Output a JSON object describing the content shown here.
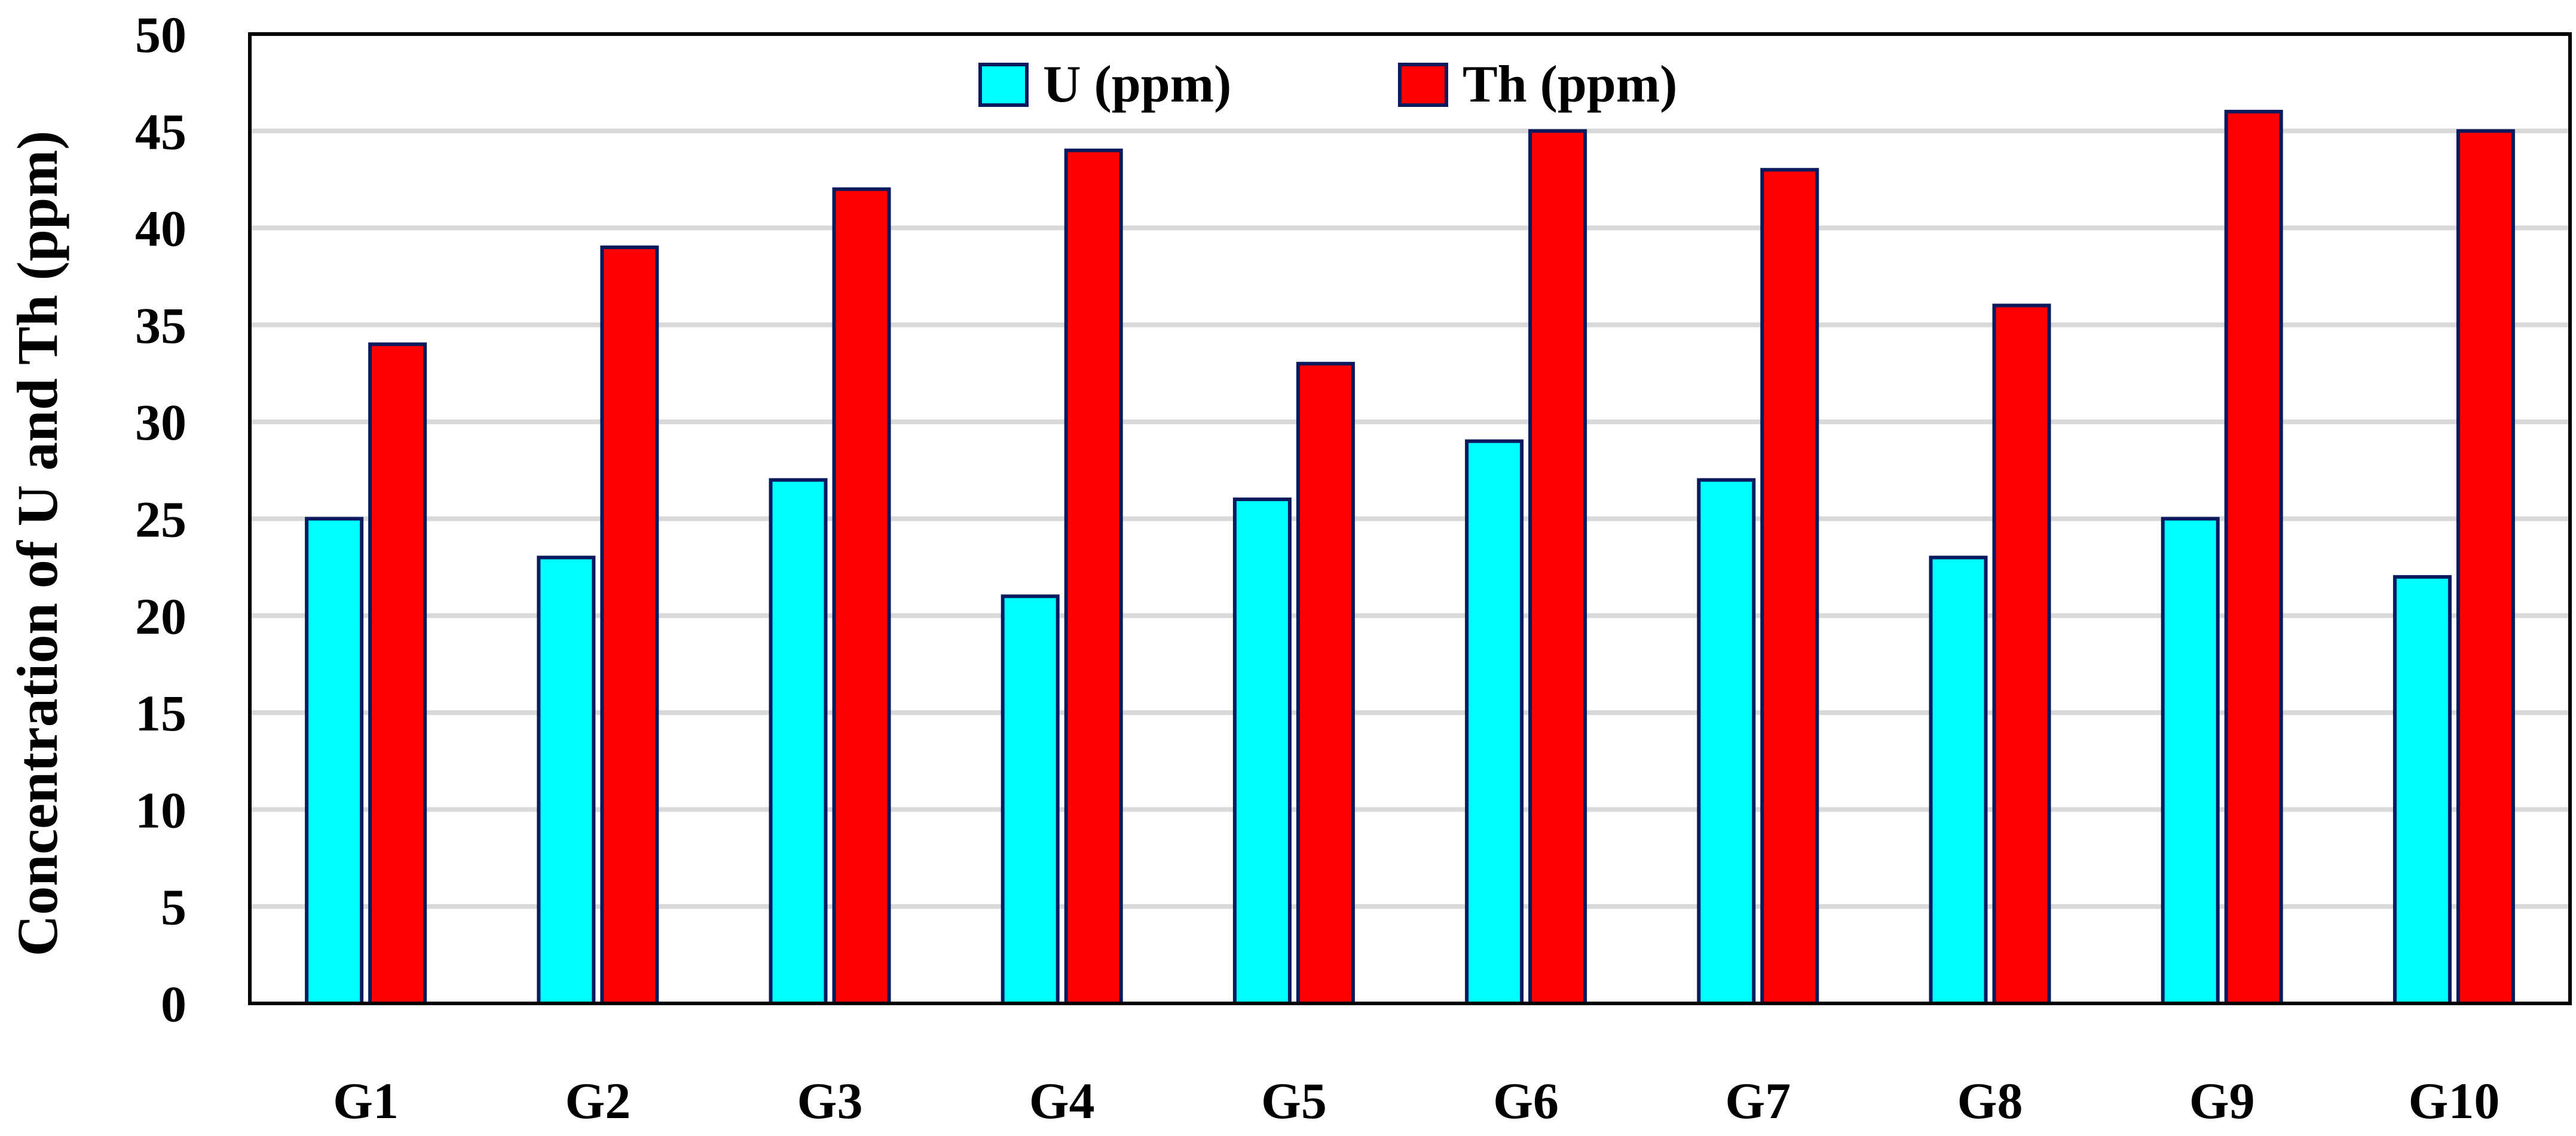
{
  "chart_data": {
    "type": "bar",
    "title": "",
    "xlabel": "",
    "ylabel": "Concentration of U and Th (ppm)",
    "ylim": [
      0,
      50
    ],
    "yticks": [
      0,
      5,
      10,
      15,
      20,
      25,
      30,
      35,
      40,
      45,
      50
    ],
    "grid": true,
    "legend_position": "top-center",
    "categories": [
      "G1",
      "G2",
      "G3",
      "G4",
      "G5",
      "G6",
      "G7",
      "G8",
      "G9",
      "G10"
    ],
    "series": [
      {
        "name": "U (ppm)",
        "color": "#00FFFF",
        "values": [
          25,
          23,
          27,
          21,
          26,
          29,
          27,
          23,
          25,
          22
        ]
      },
      {
        "name": "Th (ppm)",
        "color": "#FF0000",
        "values": [
          34,
          39,
          42,
          44,
          33,
          45,
          43,
          36,
          46,
          45
        ]
      }
    ],
    "bar_edge_color": "#0a1a5c",
    "gridline_color": "#d9d9d9"
  }
}
